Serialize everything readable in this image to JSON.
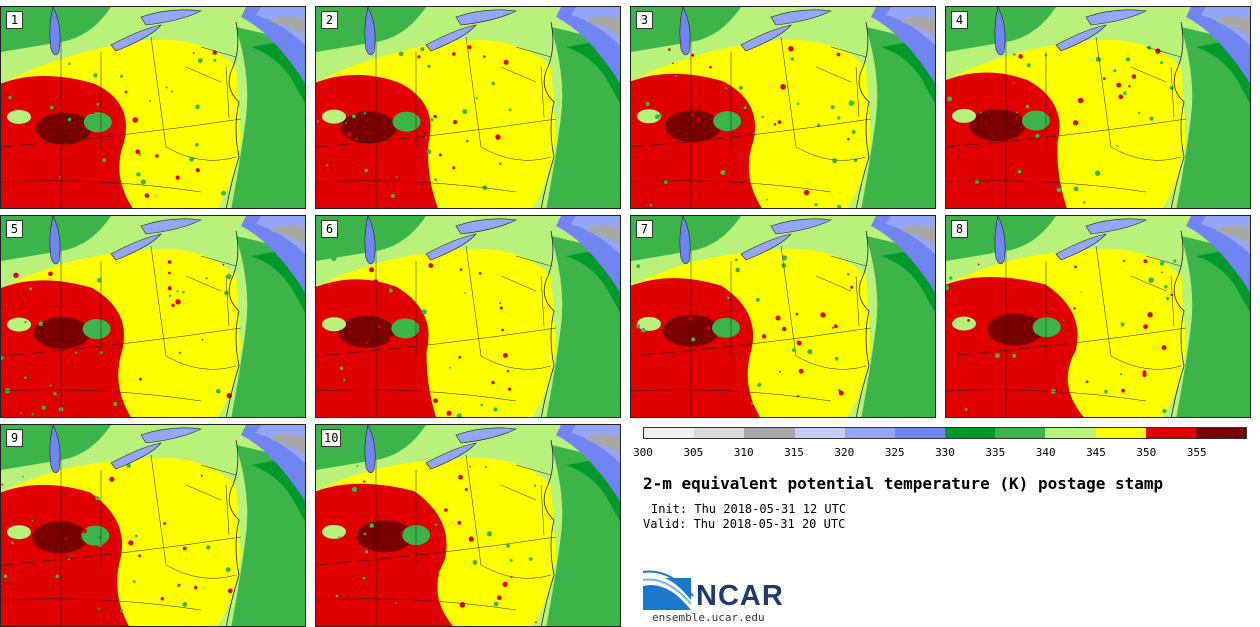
{
  "panels": [
    {
      "label": "1"
    },
    {
      "label": "2"
    },
    {
      "label": "3"
    },
    {
      "label": "4"
    },
    {
      "label": "5"
    },
    {
      "label": "6"
    },
    {
      "label": "7"
    },
    {
      "label": "8"
    },
    {
      "label": "9"
    },
    {
      "label": "10"
    }
  ],
  "colorbar": {
    "colors": [
      "#f0f0f0",
      "#d9d9d9",
      "#a8a8a8",
      "#c2cef8",
      "#93a6f7",
      "#7085f2",
      "#009a2b",
      "#3cb44a",
      "#b8f27a",
      "#ffff00",
      "#e00000",
      "#7a0000"
    ],
    "ticks": [
      "300",
      "305",
      "310",
      "315",
      "320",
      "325",
      "330",
      "335",
      "340",
      "345",
      "350",
      "355"
    ]
  },
  "title": "2-m equivalent potential temperature (K) postage stamp",
  "init": "Init: Thu 2018-05-31 12 UTC",
  "valid": "Valid: Thu 2018-05-31 20 UTC",
  "logo_text": "NCAR",
  "site": "ensemble.ucar.edu"
}
